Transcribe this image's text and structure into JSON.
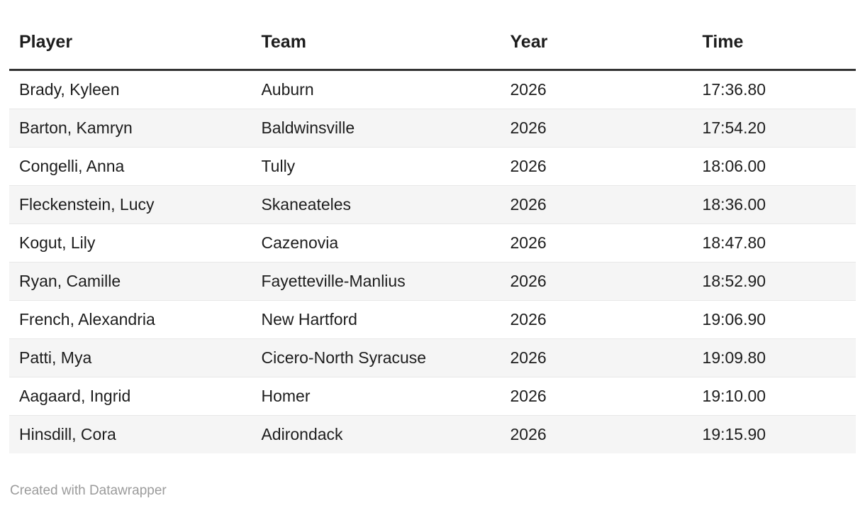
{
  "chart_data": {
    "type": "table",
    "columns": [
      "Player",
      "Team",
      "Year",
      "Time"
    ],
    "rows": [
      [
        "Brady, Kyleen",
        "Auburn",
        "2026",
        "17:36.80"
      ],
      [
        "Barton, Kamryn",
        "Baldwinsville",
        "2026",
        "17:54.20"
      ],
      [
        "Congelli, Anna",
        "Tully",
        "2026",
        "18:06.00"
      ],
      [
        "Fleckenstein, Lucy",
        "Skaneateles",
        "2026",
        "18:36.00"
      ],
      [
        "Kogut, Lily",
        "Cazenovia",
        "2026",
        "18:47.80"
      ],
      [
        "Ryan, Camille",
        "Fayetteville-Manlius",
        "2026",
        "18:52.90"
      ],
      [
        "French, Alexandria",
        "New Hartford",
        "2026",
        "19:06.90"
      ],
      [
        "Patti, Mya",
        "Cicero-North Syracuse",
        "2026",
        "19:09.80"
      ],
      [
        "Aagaard, Ingrid",
        "Homer",
        "2026",
        "19:10.00"
      ],
      [
        "Hinsdill, Cora",
        "Adirondack",
        "2026",
        "19:15.90"
      ]
    ],
    "layout": {
      "striped_rows": true,
      "grid": "horizontal-dividers",
      "column_alignment": [
        "left",
        "left",
        "left",
        "left"
      ]
    }
  },
  "footer": {
    "attribution": "Created with Datawrapper"
  },
  "colors": {
    "background": "#ffffff",
    "text": "#1d1d1d",
    "header_rule": "#333333",
    "row_stripe": "#f5f5f5",
    "row_divider": "#e8e8e8",
    "attribution_text": "#9b9b9b"
  }
}
